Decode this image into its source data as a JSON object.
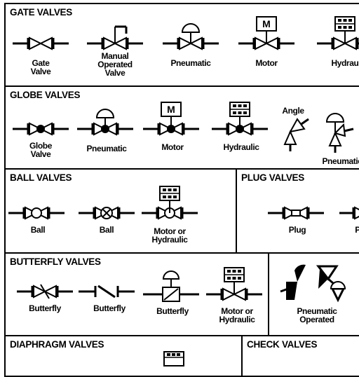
{
  "sections": {
    "gate": {
      "title": "GATE VALVES",
      "labels": [
        "Gate\nValve",
        "Manual\nOperated\nValve",
        "Pneumatic",
        "Motor",
        "Hydraulic"
      ]
    },
    "globe": {
      "title": "GLOBE VALVES",
      "labels": [
        "Globe\nValve",
        "Pneumatic",
        "Motor",
        "Hydraulic",
        "Angle",
        "Pneumatic"
      ]
    },
    "ball": {
      "title": "BALL VALVES",
      "labels": [
        "Ball",
        "Ball",
        "Motor or\nHydraulic"
      ]
    },
    "plug": {
      "title": "PLUG VALVES",
      "labels": [
        "Plug",
        "P"
      ]
    },
    "butterfly": {
      "title": "BUTTERFLY VALVES",
      "labels": [
        "Butterfly",
        "Butterfly",
        "Butterfly",
        "Motor or\nHydraulic"
      ]
    },
    "pneumatic_operated": {
      "labels": [
        "Pneumatic\nOperated"
      ]
    },
    "diaphragm": {
      "title": "DIAPHRAGM VALVES"
    },
    "check": {
      "title": "CHECK VALVES"
    }
  }
}
